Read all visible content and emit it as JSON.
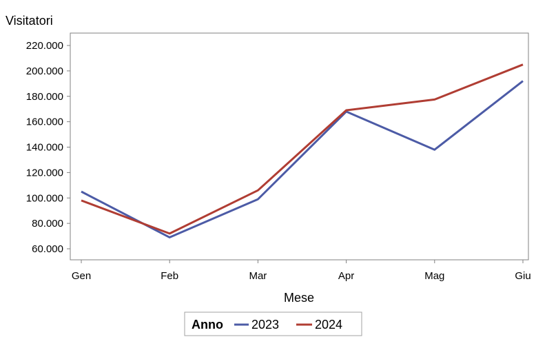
{
  "chart_data": {
    "type": "line",
    "title": "",
    "ylabel": "Visitatori",
    "xlabel": "Mese",
    "categories": [
      "Gen",
      "Feb",
      "Mar",
      "Apr",
      "Mag",
      "Giu"
    ],
    "y_ticks": [
      "60.000",
      "80.000",
      "100.000",
      "120.000",
      "140.000",
      "160.000",
      "180.000",
      "200.000",
      "220.000"
    ],
    "y_tick_values": [
      60000,
      80000,
      100000,
      120000,
      140000,
      160000,
      180000,
      200000,
      220000
    ],
    "ylim": [
      50000,
      225000
    ],
    "grid": false,
    "legend": {
      "title": "Anno",
      "placement": "bottom-center",
      "entries": [
        "2023",
        "2024"
      ]
    },
    "series": [
      {
        "name": "2023",
        "color": "#4c5ba6",
        "values": [
          105000,
          69000,
          99000,
          168000,
          138000,
          192000
        ]
      },
      {
        "name": "2024",
        "color": "#b03d33",
        "values": [
          98000,
          72000,
          106000,
          169000,
          177500,
          205000
        ]
      }
    ]
  }
}
